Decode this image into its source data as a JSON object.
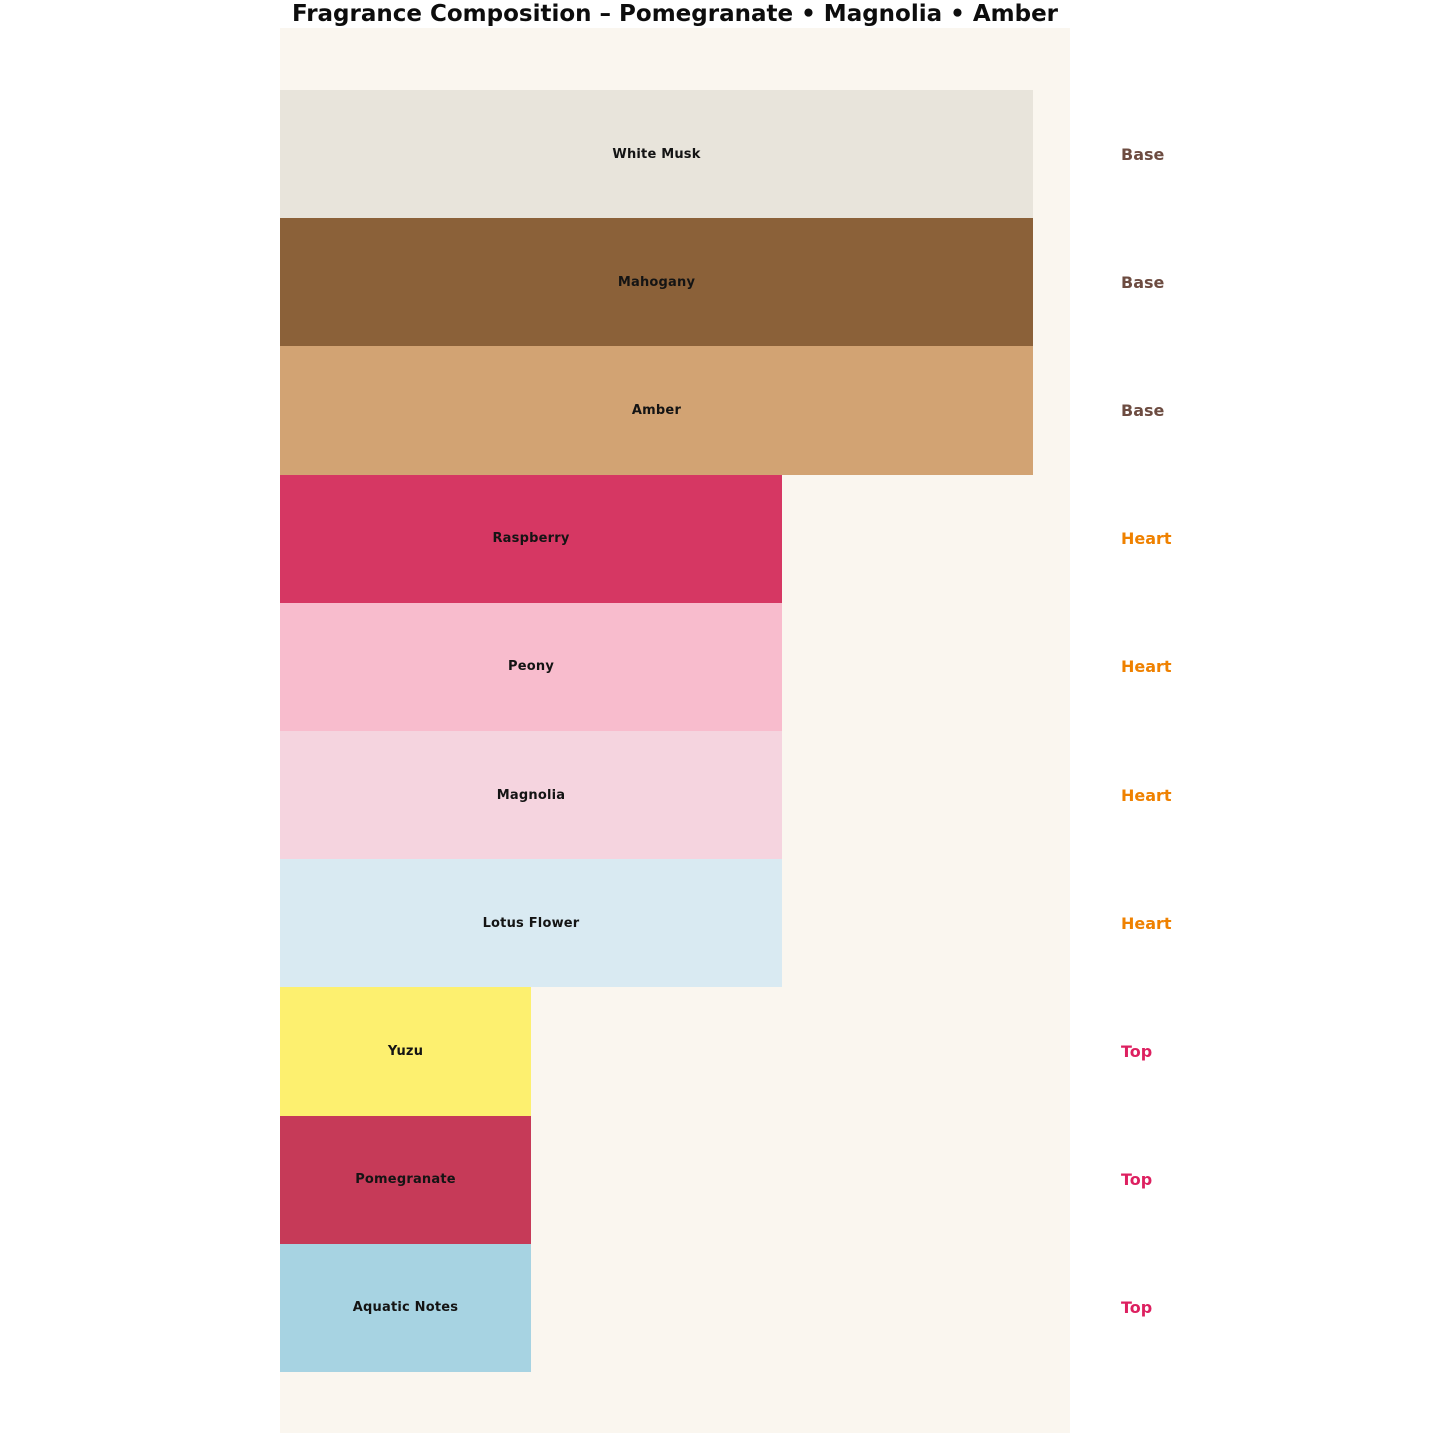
{
  "title": "Fragrance Composition – Pomegranate • Magnolia • Amber",
  "chart_data": {
    "type": "bar",
    "orientation": "horizontal",
    "title": "Fragrance Composition – Pomegranate • Magnolia • Amber",
    "xlabel": "",
    "ylabel": "",
    "axes_visible": false,
    "grid": false,
    "plot_background": "#faf6ef",
    "page_background": "#ffffff",
    "bar_width_scale": {
      "Base": 1.0,
      "Heart": 0.667,
      "Top": 0.333
    },
    "categories": [
      "White Musk",
      "Mahogany",
      "Amber",
      "Raspberry",
      "Peony",
      "Magnolia",
      "Lotus Flower",
      "Yuzu",
      "Pomegranate",
      "Aquatic Notes"
    ],
    "notes": [
      {
        "name": "White Musk",
        "layer": "Base",
        "relative_width": 1.0,
        "color": "#e8e4db"
      },
      {
        "name": "Mahogany",
        "layer": "Base",
        "relative_width": 1.0,
        "color": "#8b6139"
      },
      {
        "name": "Amber",
        "layer": "Base",
        "relative_width": 1.0,
        "color": "#d2a373"
      },
      {
        "name": "Raspberry",
        "layer": "Heart",
        "relative_width": 0.667,
        "color": "#d63763"
      },
      {
        "name": "Peony",
        "layer": "Heart",
        "relative_width": 0.667,
        "color": "#f8bccd"
      },
      {
        "name": "Magnolia",
        "layer": "Heart",
        "relative_width": 0.667,
        "color": "#f5d4df"
      },
      {
        "name": "Lotus Flower",
        "layer": "Heart",
        "relative_width": 0.667,
        "color": "#d9eaf2"
      },
      {
        "name": "Yuzu",
        "layer": "Top",
        "relative_width": 0.333,
        "color": "#fdf06f"
      },
      {
        "name": "Pomegranate",
        "layer": "Top",
        "relative_width": 0.333,
        "color": "#c63a58"
      },
      {
        "name": "Aquatic Notes",
        "layer": "Top",
        "relative_width": 0.333,
        "color": "#a7d3e2"
      }
    ],
    "layer_labels": {
      "Base": {
        "text": "Base",
        "color": "#6d4c41"
      },
      "Heart": {
        "text": "Heart",
        "color": "#ef8100"
      },
      "Top": {
        "text": "Top",
        "color": "#dd2060"
      }
    },
    "legend_position": "right-of-each-bar",
    "bar_label_position": "center"
  }
}
